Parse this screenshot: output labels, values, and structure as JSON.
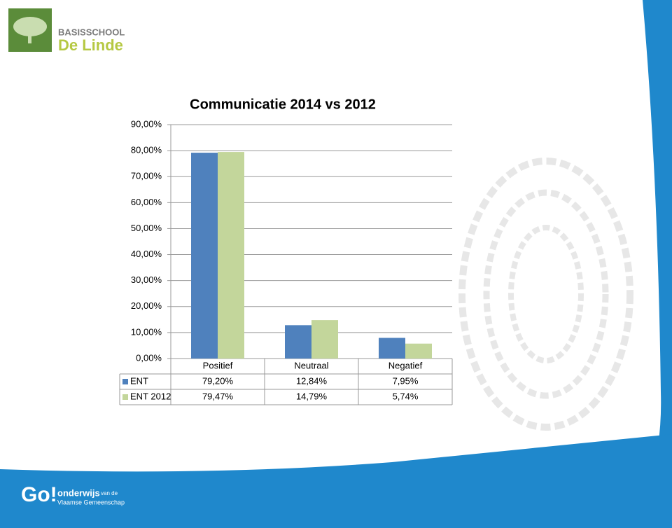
{
  "header": {
    "school_line1": "BASISSCHOOL",
    "school_line2": "De Linde"
  },
  "footer": {
    "logo": "Go!",
    "line1": "onderwijs",
    "line1_small": "van de",
    "line2": "Vlaamse Gemeenschap"
  },
  "chart_data": {
    "type": "bar",
    "title": "Communicatie 2014 vs 2012",
    "categories": [
      "Positief",
      "Neutraal",
      "Negatief"
    ],
    "series": [
      {
        "name": "ENT",
        "color": "#4f81bd",
        "values": [
          79.2,
          12.84,
          7.95
        ],
        "value_labels": [
          "79,20%",
          "12,84%",
          "7,95%"
        ]
      },
      {
        "name": "ENT 2012",
        "color": "#c3d69b",
        "values": [
          79.47,
          14.79,
          5.74
        ],
        "value_labels": [
          "79,47%",
          "14,79%",
          "5,74%"
        ]
      }
    ],
    "ylim": [
      0,
      90
    ],
    "yticks": [
      {
        "value": 0,
        "label": "0,00%"
      },
      {
        "value": 10,
        "label": "10,00%"
      },
      {
        "value": 20,
        "label": "20,00%"
      },
      {
        "value": 30,
        "label": "30,00%"
      },
      {
        "value": 40,
        "label": "40,00%"
      },
      {
        "value": 50,
        "label": "50,00%"
      },
      {
        "value": 60,
        "label": "60,00%"
      },
      {
        "value": 70,
        "label": "70,00%"
      },
      {
        "value": 80,
        "label": "80,00%"
      },
      {
        "value": 90,
        "label": "90,00%"
      }
    ],
    "grid": true
  }
}
